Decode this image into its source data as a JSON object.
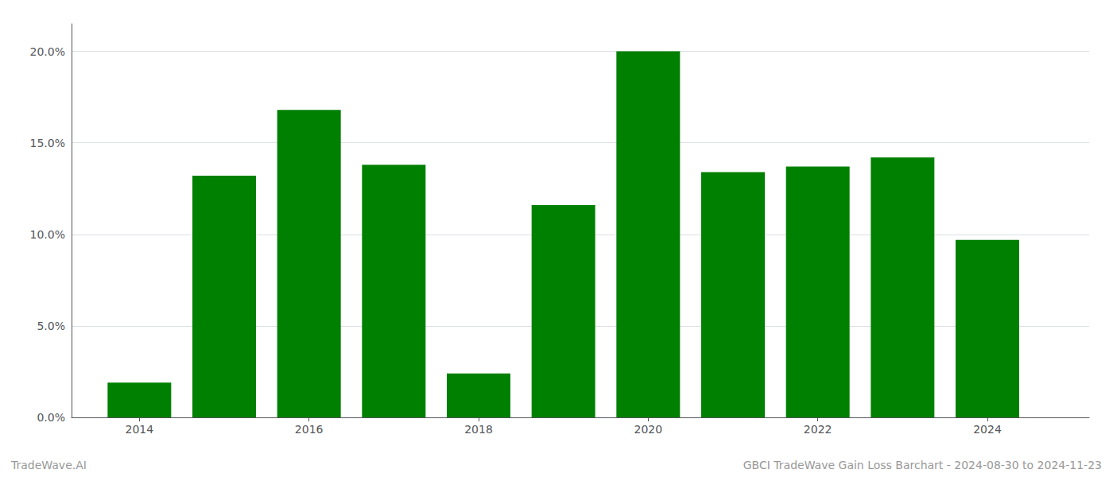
{
  "chart_data": {
    "type": "bar",
    "x": [
      2014,
      2015,
      2016,
      2017,
      2018,
      2019,
      2020,
      2021,
      2022,
      2023,
      2024
    ],
    "values": [
      0.019,
      0.132,
      0.168,
      0.138,
      0.024,
      0.116,
      0.2,
      0.134,
      0.137,
      0.142,
      0.097
    ],
    "color": "#008000",
    "xlim": [
      2013.2,
      2025.2
    ],
    "xticks": [
      2014,
      2016,
      2018,
      2020,
      2022,
      2024
    ],
    "ylim": [
      0,
      0.215
    ],
    "yticks": [
      {
        "value": 0.0,
        "label": "0.0%"
      },
      {
        "value": 0.05,
        "label": "5.0%"
      },
      {
        "value": 0.1,
        "label": "10.0%"
      },
      {
        "value": 0.15,
        "label": "15.0%"
      },
      {
        "value": 0.2,
        "label": "20.0%"
      }
    ],
    "grid": true,
    "annotations": [
      "TradeWave.AI",
      "GBCI TradeWave Gain Loss Barchart - 2024-08-30 to 2024-11-23"
    ]
  }
}
